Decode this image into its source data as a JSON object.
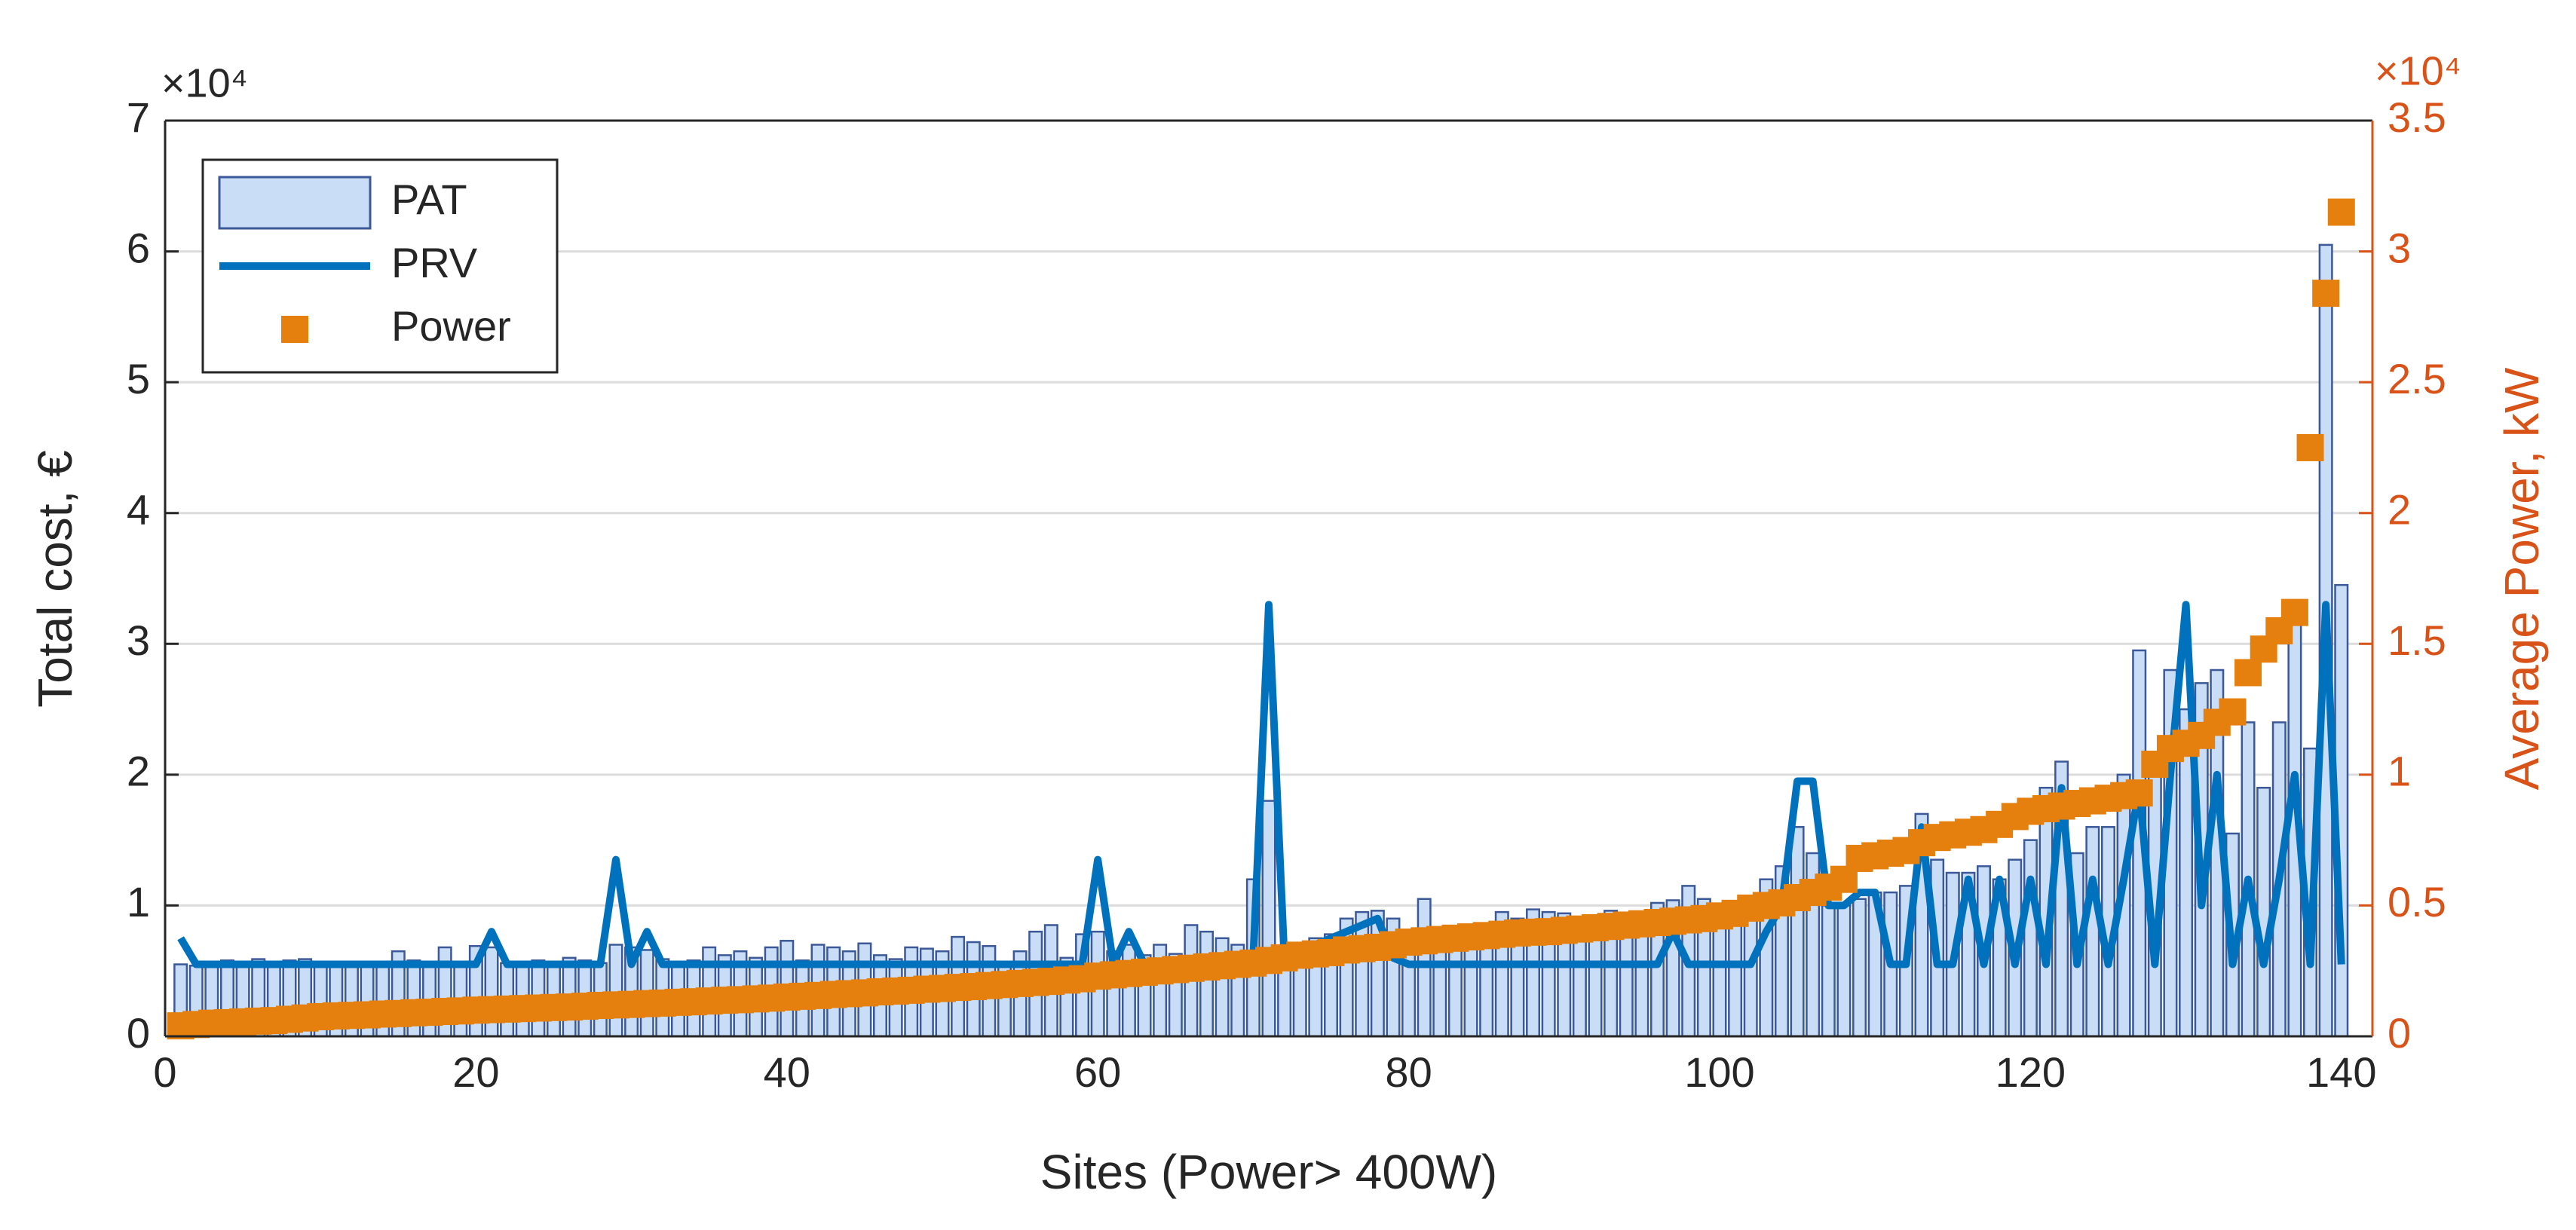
{
  "chart_data": {
    "type": "bar",
    "x_label": "Sites (Power> 400W)",
    "y_label": "Total cost, €",
    "y2_label": "Average Power, kW",
    "y_multiplier": "×10⁴",
    "y2_multiplier": "×10⁴",
    "legend": "upper left",
    "grid": true,
    "xlim": [
      0,
      142
    ],
    "xticks": [
      0,
      20,
      40,
      60,
      80,
      100,
      120,
      140
    ],
    "ylim": [
      0,
      70000
    ],
    "yticks": [
      {
        "value": 0,
        "label": "0"
      },
      {
        "value": 10000,
        "label": "1"
      },
      {
        "value": 20000,
        "label": "2"
      },
      {
        "value": 30000,
        "label": "3"
      },
      {
        "value": 40000,
        "label": "4"
      },
      {
        "value": 50000,
        "label": "5"
      },
      {
        "value": 60000,
        "label": "6"
      },
      {
        "value": 70000,
        "label": "7"
      }
    ],
    "y2lim": [
      0,
      35000
    ],
    "y2ticks": [
      {
        "value": 0,
        "label": "0"
      },
      {
        "value": 5000,
        "label": "0.5"
      },
      {
        "value": 10000,
        "label": "1"
      },
      {
        "value": 15000,
        "label": "1.5"
      },
      {
        "value": 20000,
        "label": "2"
      },
      {
        "value": 25000,
        "label": "2.5"
      },
      {
        "value": 30000,
        "label": "3"
      },
      {
        "value": 35000,
        "label": "3.5"
      }
    ],
    "y2_color": "#d95319",
    "x": [
      1,
      2,
      3,
      4,
      5,
      6,
      7,
      8,
      9,
      10,
      11,
      12,
      13,
      14,
      15,
      16,
      17,
      18,
      19,
      20,
      21,
      22,
      23,
      24,
      25,
      26,
      27,
      28,
      29,
      30,
      31,
      32,
      33,
      34,
      35,
      36,
      37,
      38,
      39,
      40,
      41,
      42,
      43,
      44,
      45,
      46,
      47,
      48,
      49,
      50,
      51,
      52,
      53,
      54,
      55,
      56,
      57,
      58,
      59,
      60,
      61,
      62,
      63,
      64,
      65,
      66,
      67,
      68,
      69,
      70,
      71,
      72,
      73,
      74,
      75,
      76,
      77,
      78,
      79,
      80,
      81,
      82,
      83,
      84,
      85,
      86,
      87,
      88,
      89,
      90,
      91,
      92,
      93,
      94,
      95,
      96,
      97,
      98,
      99,
      100,
      101,
      102,
      103,
      104,
      105,
      106,
      107,
      108,
      109,
      110,
      111,
      112,
      113,
      114,
      115,
      116,
      117,
      118,
      119,
      120,
      121,
      122,
      123,
      124,
      125,
      126,
      127,
      128,
      129,
      130,
      131,
      132,
      133,
      134,
      135,
      136,
      137,
      138,
      139,
      140
    ],
    "series": [
      {
        "name": "PAT",
        "type": "bar",
        "color": "#c9ddf6",
        "edge_color": "#3b5998",
        "values": [
          5500,
          5400,
          5600,
          5800,
          5700,
          5900,
          5600,
          5800,
          5900,
          5500,
          5400,
          5600,
          5500,
          5700,
          6500,
          5800,
          5600,
          6800,
          5500,
          6900,
          6800,
          5600,
          5700,
          5800,
          5700,
          6000,
          5800,
          5600,
          7000,
          6800,
          6600,
          5900,
          5700,
          5800,
          6800,
          6200,
          6500,
          6000,
          6800,
          7300,
          5800,
          7000,
          6800,
          6500,
          7100,
          6200,
          5900,
          6800,
          6700,
          6500,
          7600,
          7200,
          6900,
          5600,
          6500,
          8000,
          8500,
          6000,
          7800,
          8000,
          6500,
          7000,
          6200,
          7000,
          6300,
          8500,
          8000,
          7500,
          7000,
          12000,
          18000,
          6800,
          6500,
          7500,
          7800,
          9000,
          9500,
          9600,
          9000,
          7000,
          10500,
          6500,
          7000,
          7200,
          7500,
          9500,
          9000,
          9700,
          9500,
          9400,
          8800,
          9200,
          9600,
          9000,
          9200,
          10200,
          10400,
          11500,
          10500,
          10000,
          10000,
          10500,
          12000,
          13000,
          16000,
          14000,
          10000,
          10000,
          10500,
          11000,
          11000,
          11500,
          17000,
          13500,
          12500,
          12500,
          13000,
          12000,
          13500,
          15000,
          19000,
          21000,
          14000,
          16000,
          16000,
          20000,
          29500,
          20000,
          28000,
          25000,
          27000,
          28000,
          15500,
          24000,
          19000,
          24000,
          33000,
          22000,
          60500,
          34500
        ]
      },
      {
        "name": "PRV",
        "type": "line",
        "color": "#0072bd",
        "values": [
          7500,
          5500,
          5500,
          5500,
          5500,
          5500,
          5500,
          5500,
          5500,
          5500,
          5500,
          5500,
          5500,
          5500,
          5500,
          5500,
          5500,
          5500,
          5500,
          5500,
          8000,
          5500,
          5500,
          5500,
          5500,
          5500,
          5500,
          5500,
          13500,
          5500,
          8000,
          5500,
          5500,
          5500,
          5500,
          5500,
          5500,
          5500,
          5500,
          5500,
          5500,
          5500,
          5500,
          5500,
          5500,
          5500,
          5500,
          5500,
          5500,
          5500,
          5500,
          5500,
          5500,
          5500,
          5500,
          5500,
          5500,
          5500,
          5500,
          13500,
          5500,
          8000,
          5500,
          5500,
          5500,
          5500,
          5500,
          5500,
          5500,
          6000,
          33000,
          6000,
          6500,
          7000,
          7500,
          8000,
          8500,
          9000,
          6000,
          5500,
          5500,
          5500,
          5500,
          5500,
          5500,
          5500,
          5500,
          5500,
          5500,
          5500,
          5500,
          5500,
          5500,
          5500,
          5500,
          5500,
          8000,
          5500,
          5500,
          5500,
          5500,
          5500,
          8000,
          10000,
          19500,
          19500,
          10000,
          10000,
          11000,
          11000,
          5500,
          5500,
          16000,
          5500,
          5500,
          12000,
          5500,
          12000,
          5500,
          12000,
          5500,
          19000,
          5500,
          12000,
          5500,
          12000,
          19000,
          5500,
          20000,
          33000,
          10000,
          20000,
          5500,
          12000,
          5500,
          12000,
          20000,
          5500,
          33000,
          5500
        ]
      },
      {
        "name": "Power",
        "type": "scatter",
        "axis": "y2",
        "color": "#e5800e",
        "values": [
          400,
          450,
          500,
          520,
          550,
          580,
          600,
          650,
          700,
          750,
          780,
          800,
          820,
          850,
          870,
          900,
          920,
          950,
          970,
          1000,
          1020,
          1040,
          1060,
          1080,
          1100,
          1120,
          1150,
          1180,
          1200,
          1220,
          1250,
          1270,
          1300,
          1320,
          1350,
          1380,
          1400,
          1430,
          1460,
          1500,
          1530,
          1560,
          1600,
          1630,
          1660,
          1700,
          1730,
          1760,
          1800,
          1830,
          1870,
          1900,
          1940,
          1980,
          2020,
          2060,
          2100,
          2150,
          2200,
          2300,
          2350,
          2400,
          2450,
          2500,
          2550,
          2600,
          2650,
          2700,
          2750,
          2800,
          2900,
          3000,
          3100,
          3150,
          3200,
          3300,
          3350,
          3400,
          3500,
          3600,
          3650,
          3700,
          3750,
          3800,
          3850,
          3900,
          3950,
          3980,
          4000,
          4050,
          4100,
          4150,
          4200,
          4250,
          4300,
          4350,
          4400,
          4450,
          4500,
          4600,
          4700,
          4900,
          5000,
          5100,
          5300,
          5500,
          5700,
          6000,
          6800,
          6900,
          7000,
          7100,
          7400,
          7600,
          7700,
          7800,
          7900,
          8100,
          8400,
          8600,
          8700,
          8800,
          8900,
          9000,
          9100,
          9200,
          9300,
          10400,
          11000,
          11200,
          11500,
          12000,
          12400,
          13900,
          14800,
          15500,
          16200,
          22500,
          28400,
          31500
        ]
      }
    ]
  }
}
